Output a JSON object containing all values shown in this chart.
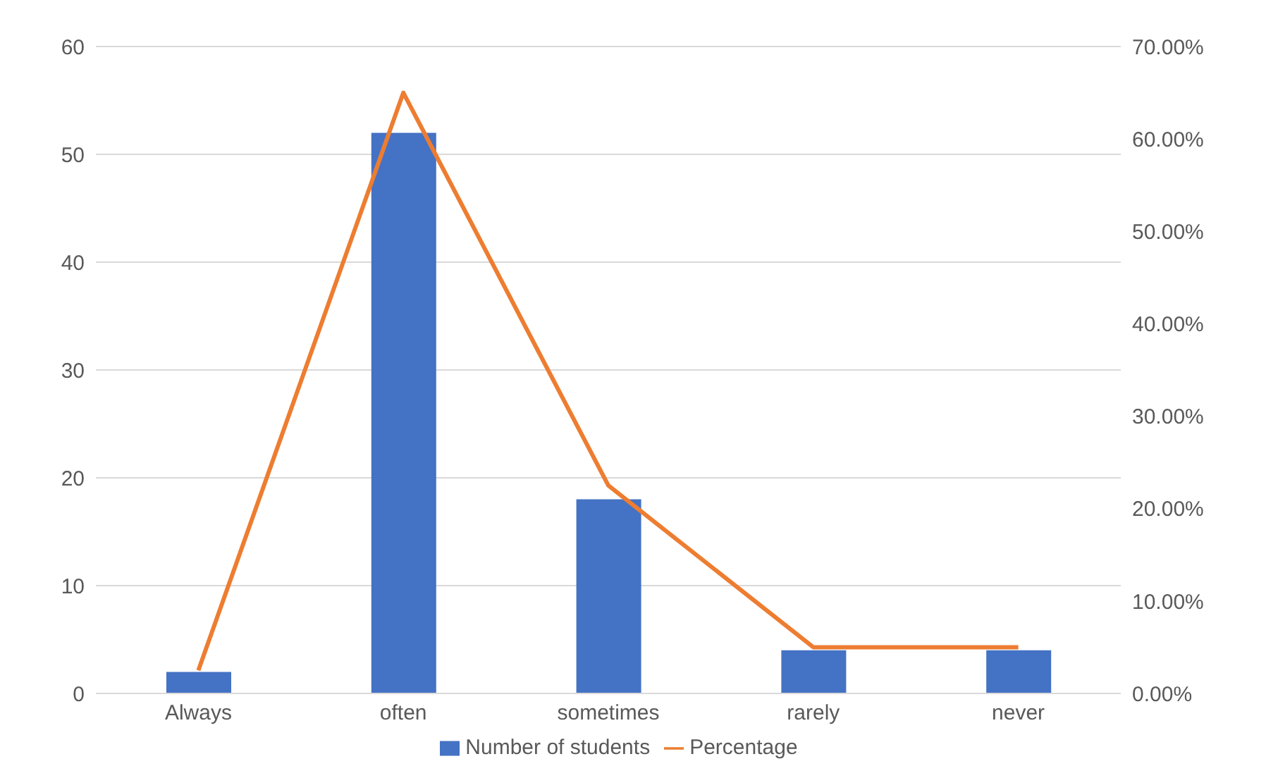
{
  "chart_data": {
    "type": "bar",
    "categories": [
      "Always",
      "often",
      "sometimes",
      "rarely",
      "never"
    ],
    "series": [
      {
        "name": "Number of students",
        "color": "#4472c4",
        "values": [
          2,
          52,
          18,
          4,
          4
        ]
      },
      {
        "name": "Percentage",
        "type": "line",
        "axis": "y2",
        "color": "#ed7d31",
        "values": [
          2.5,
          65,
          22.5,
          5,
          5
        ]
      }
    ],
    "ylim": [
      0,
      60
    ],
    "yticks": [
      0,
      10,
      20,
      30,
      40,
      50,
      60
    ],
    "y2lim": [
      0,
      70
    ],
    "y2ticks": [
      {
        "value": 0,
        "label": "0.00%"
      },
      {
        "value": 10,
        "label": "10.00%"
      },
      {
        "value": 20,
        "label": "20.00%"
      },
      {
        "value": 30,
        "label": "30.00%"
      },
      {
        "value": 40,
        "label": "40.00%"
      },
      {
        "value": 50,
        "label": "50.00%"
      },
      {
        "value": 60,
        "label": "60.00%"
      },
      {
        "value": 70,
        "label": "70.00%"
      }
    ],
    "grid": "y",
    "legend": "bottom",
    "marker": "none",
    "line_style": "solid"
  }
}
